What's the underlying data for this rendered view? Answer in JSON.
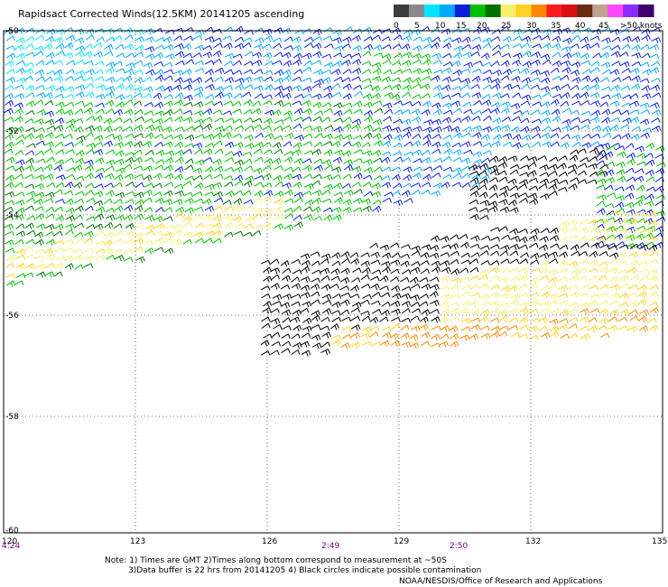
{
  "title": "Rapidsact Corrected Winds(12.5KM) 20141205 ascending",
  "legend": {
    "labels": [
      "0",
      "5",
      "10",
      "15",
      "20",
      "25",
      "30",
      "35",
      "40",
      "45",
      ">50 knots"
    ],
    "colors": [
      "#3d3d3d",
      "#8a8a8a",
      "#00e5ff",
      "#00a8ff",
      "#0a1fd6",
      "#00c000",
      "#007000",
      "#f5f06a",
      "#ffd21f",
      "#ff8800",
      "#ff1c1c",
      "#d81010",
      "#6a2a14",
      "#bfa38a",
      "#ff49ff",
      "#8b2cff",
      "#40006b"
    ]
  },
  "map": {
    "latitudes": [
      "-50",
      "-52",
      "-54",
      "-56",
      "-58",
      "-60"
    ],
    "longitudes": [
      "120",
      "123",
      "126",
      "129",
      "132",
      "135"
    ],
    "times": [
      "4:24",
      "2:49",
      "2:50"
    ]
  },
  "notes": {
    "line1": "Note: 1) Times are GMT 2)Times along bottom correspond to measurement at ~50S",
    "line2": "3)Data buffer is 22 hrs from 20141205 4) Black circles indicate possible contamination",
    "line3": "NOAA/NESDIS/Office of Research and Applications"
  }
}
